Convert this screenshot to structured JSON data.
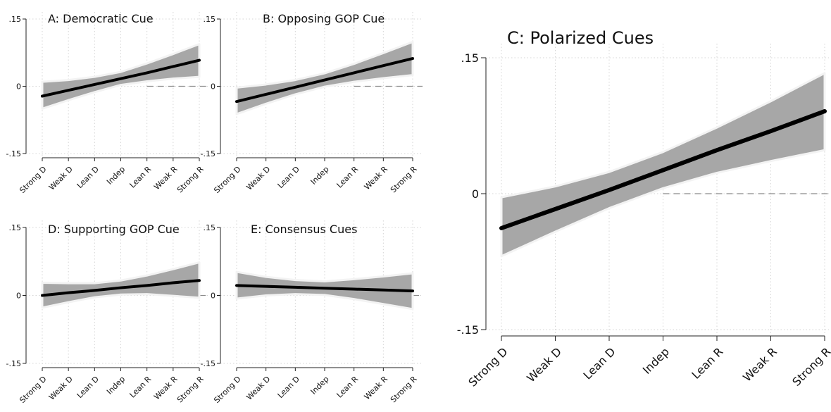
{
  "chart_data": [
    {
      "id": "A",
      "type": "area",
      "title": "A: Democratic Cue",
      "categories": [
        "Strong D",
        "Weak D",
        "Lean D",
        "Indep",
        "Lean R",
        "Weak R",
        "Strong R"
      ],
      "ytick_labels": [
        ".15",
        "0",
        "-.15"
      ],
      "yticks": [
        0.15,
        0,
        -0.15
      ],
      "ylim": [
        -0.15,
        0.15
      ],
      "reference_line": {
        "y": 0,
        "from_category": "Lean R"
      },
      "series": [
        {
          "estimate": [
            -0.022,
            -0.009,
            0.004,
            0.017,
            0.03,
            0.044,
            0.058
          ],
          "ci_upper": [
            0.01,
            0.014,
            0.021,
            0.032,
            0.051,
            0.072,
            0.094
          ],
          "ci_lower": [
            -0.05,
            -0.031,
            -0.013,
            0.003,
            0.011,
            0.017,
            0.021
          ]
        }
      ],
      "grid": true
    },
    {
      "id": "B",
      "type": "area",
      "title": "B: Opposing GOP Cue",
      "categories": [
        "Strong D",
        "Weak D",
        "Lean D",
        "Indep",
        "Lean R",
        "Weak R",
        "Strong R"
      ],
      "ytick_labels": [
        ".15",
        "0",
        "-.15"
      ],
      "yticks": [
        0.15,
        0,
        -0.15
      ],
      "ylim": [
        -0.15,
        0.15
      ],
      "reference_line": {
        "y": 0,
        "from_category": "Lean R"
      },
      "series": [
        {
          "estimate": [
            -0.034,
            -0.018,
            -0.002,
            0.014,
            0.03,
            0.046,
            0.062
          ],
          "ci_upper": [
            -0.003,
            0.004,
            0.014,
            0.029,
            0.05,
            0.074,
            0.099
          ],
          "ci_lower": [
            -0.062,
            -0.039,
            -0.018,
            -0.001,
            0.01,
            0.018,
            0.025
          ]
        }
      ],
      "grid": true
    },
    {
      "id": "C",
      "type": "area",
      "title": "C: Polarized Cues",
      "categories": [
        "Strong D",
        "Weak D",
        "Lean D",
        "Indep",
        "Lean R",
        "Weak R",
        "Strong R"
      ],
      "ytick_labels": [
        ".15",
        "0",
        "-.15"
      ],
      "yticks": [
        0.15,
        0,
        -0.15
      ],
      "ylim": [
        -0.15,
        0.15
      ],
      "reference_line": {
        "y": 0,
        "from_category": "Indep"
      },
      "series": [
        {
          "estimate": [
            -0.038,
            -0.017,
            0.004,
            0.026,
            0.048,
            0.069,
            0.091
          ],
          "ci_upper": [
            -0.004,
            0.008,
            0.024,
            0.046,
            0.073,
            0.102,
            0.133
          ],
          "ci_lower": [
            -0.069,
            -0.042,
            -0.016,
            0.006,
            0.023,
            0.036,
            0.048
          ]
        }
      ],
      "grid": true
    },
    {
      "id": "D",
      "type": "area",
      "title": "D: Supporting GOP Cue",
      "categories": [
        "Strong D",
        "Weak D",
        "Lean D",
        "Indep",
        "Lean R",
        "Weak R",
        "Strong R"
      ],
      "ytick_labels": [
        ".15",
        "0",
        "-.15"
      ],
      "yticks": [
        0.15,
        0,
        -0.15
      ],
      "ylim": [
        -0.15,
        0.15
      ],
      "reference_line": {
        "y": 0,
        "from_category": "Strong R"
      },
      "series": [
        {
          "estimate": [
            0.0,
            0.006,
            0.011,
            0.017,
            0.022,
            0.028,
            0.033
          ],
          "ci_upper": [
            0.028,
            0.027,
            0.027,
            0.033,
            0.044,
            0.058,
            0.073
          ],
          "ci_lower": [
            -0.027,
            -0.015,
            -0.004,
            0.002,
            0.003,
            -0.001,
            -0.005
          ]
        }
      ],
      "grid": true
    },
    {
      "id": "E",
      "type": "area",
      "title": "E: Consensus Cues",
      "categories": [
        "Strong D",
        "Weak D",
        "Lean D",
        "Indep",
        "Lean R",
        "Weak R",
        "Strong R"
      ],
      "ytick_labels": [
        ".15",
        "0",
        "-.15"
      ],
      "yticks": [
        0.15,
        0,
        -0.15
      ],
      "ylim": [
        -0.15,
        0.15
      ],
      "reference_line": {
        "y": 0,
        "from_category": "Strong R"
      },
      "series": [
        {
          "estimate": [
            0.022,
            0.02,
            0.018,
            0.016,
            0.014,
            0.012,
            0.01
          ],
          "ci_upper": [
            0.052,
            0.041,
            0.034,
            0.031,
            0.036,
            0.042,
            0.049
          ],
          "ci_lower": [
            -0.007,
            0.0,
            0.003,
            0.001,
            -0.008,
            -0.019,
            -0.03
          ]
        }
      ],
      "grid": true
    }
  ]
}
